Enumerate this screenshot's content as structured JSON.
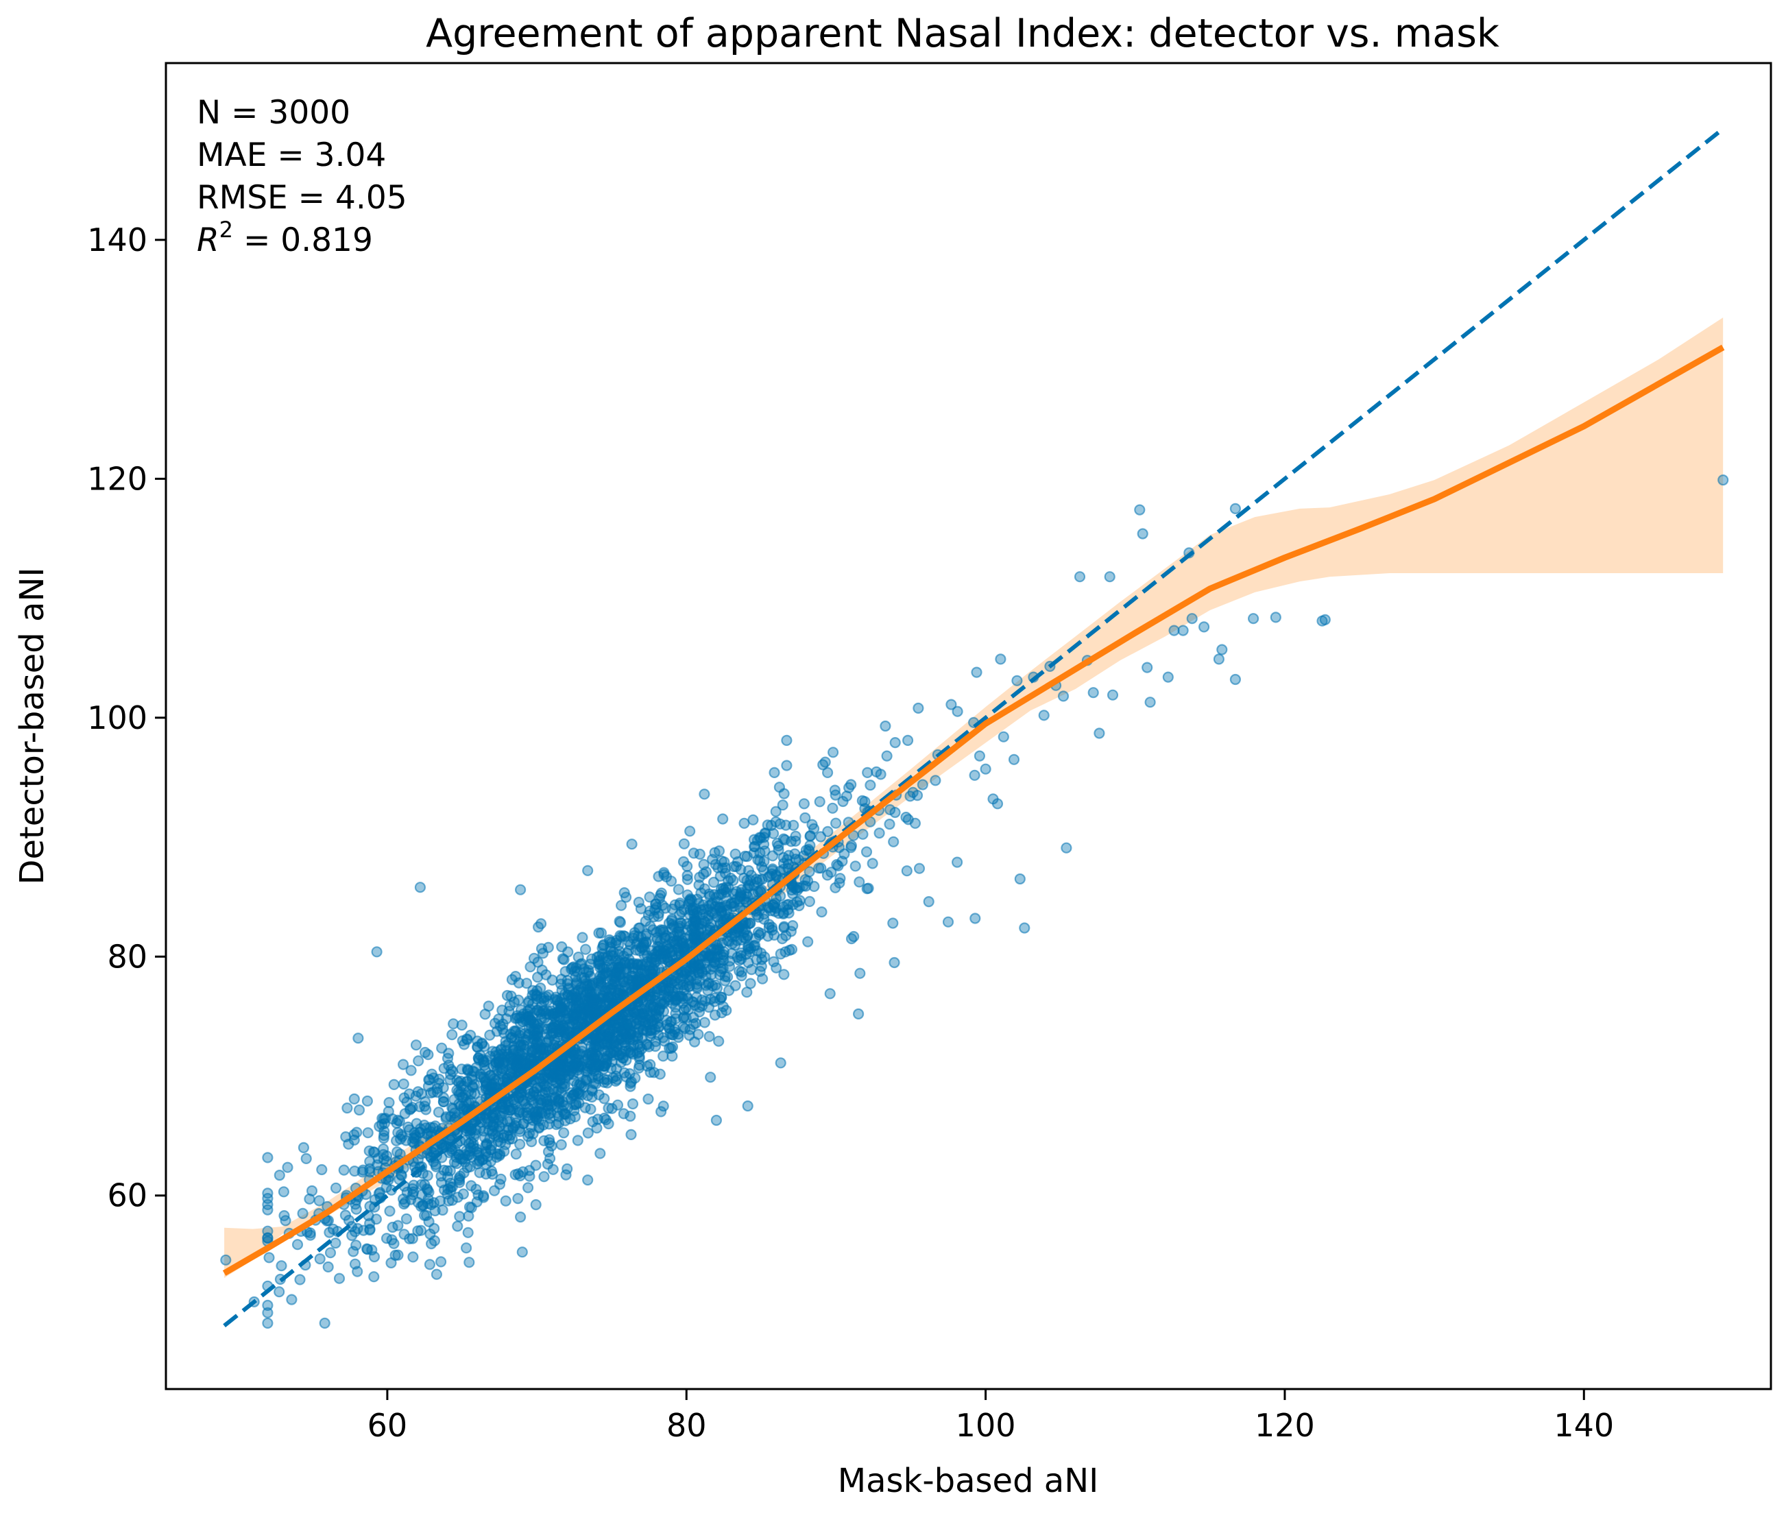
{
  "chart_data": {
    "type": "scatter",
    "title": "Agreement of apparent Nasal Index: detector vs. mask",
    "xlabel": "Mask-based aNI",
    "ylabel": "Detector-based aNI",
    "xlim": [
      45.2,
      152.5
    ],
    "ylim": [
      43.8,
      154.8
    ],
    "xticks": [
      60,
      80,
      100,
      120,
      140
    ],
    "yticks": [
      60,
      80,
      100,
      120,
      140
    ],
    "grid": false,
    "annotations": {
      "n": "N = 3000",
      "mae": "MAE = 3.04",
      "rmse": "RMSE = 4.05",
      "r2_label": "R",
      "r2_exp": "2",
      "r2_value": " = 0.819"
    },
    "identity_line": {
      "x": [
        49.1,
        149.3
      ],
      "y": [
        49.1,
        149.3
      ],
      "color": "#0173b2",
      "style": "dashed"
    },
    "trend_line": {
      "color": "#ff7f0e",
      "x": [
        49.1,
        52,
        56,
        60,
        65,
        70,
        75,
        80,
        85,
        90,
        95,
        100,
        105,
        110,
        115,
        120,
        125,
        130,
        140,
        149.3
      ],
      "y": [
        53.5,
        55.6,
        58.6,
        62.0,
        66.2,
        70.6,
        75.3,
        79.8,
        84.7,
        89.7,
        94.6,
        99.5,
        103.3,
        107.1,
        110.8,
        113.4,
        115.8,
        118.3,
        124.4,
        131.0
      ]
    },
    "confidence_band": {
      "color": "#ffe0c2",
      "x": [
        49.1,
        51,
        53,
        56,
        60,
        65,
        70,
        75,
        80,
        85,
        90,
        95,
        100,
        103,
        106,
        109,
        112,
        115,
        118,
        121,
        123,
        127,
        130,
        135,
        140,
        145,
        149.3
      ],
      "upper": [
        57.3,
        57.2,
        57.4,
        59.5,
        62.9,
        67.0,
        71.4,
        76.1,
        80.6,
        85.6,
        90.6,
        95.7,
        100.9,
        103.9,
        106.8,
        109.7,
        112.5,
        115.3,
        116.8,
        117.5,
        117.6,
        118.7,
        119.9,
        122.8,
        126.4,
        130.0,
        133.5
      ],
      "lower": [
        53.1,
        54.6,
        56.8,
        58.3,
        61.2,
        65.4,
        69.8,
        74.5,
        79.0,
        83.8,
        88.7,
        93.4,
        97.9,
        100.6,
        102.4,
        104.8,
        106.8,
        109.0,
        110.5,
        111.4,
        111.8,
        112.1,
        112.1,
        112.1,
        112.1,
        112.1,
        112.1
      ]
    },
    "series": [
      {
        "color": "#0173b2",
        "count": 3000,
        "bulk_model": {
          "trend": "trend_line",
          "x_mean": 73.5,
          "x_sd": 7.8,
          "x_min": 52,
          "x_max": 100,
          "resid_sd": 3.6
        },
        "outliers": [
          {
            "x": 49.2,
            "y": 54.6
          },
          {
            "x": 51.1,
            "y": 51.1
          },
          {
            "x": 52.1,
            "y": 54.8
          },
          {
            "x": 52.8,
            "y": 61.7
          },
          {
            "x": 53.2,
            "y": 57.9
          },
          {
            "x": 54.0,
            "y": 55.9
          },
          {
            "x": 55.5,
            "y": 54.7
          },
          {
            "x": 59.1,
            "y": 53.2
          },
          {
            "x": 59.3,
            "y": 80.4
          },
          {
            "x": 62.2,
            "y": 85.8
          },
          {
            "x": 63.3,
            "y": 53.4
          },
          {
            "x": 65.4,
            "y": 56.9
          },
          {
            "x": 66.6,
            "y": 61.8
          },
          {
            "x": 68.9,
            "y": 85.6
          },
          {
            "x": 68.9,
            "y": 58.2
          },
          {
            "x": 73.4,
            "y": 87.2
          },
          {
            "x": 73.4,
            "y": 61.3
          },
          {
            "x": 76.3,
            "y": 65.1
          },
          {
            "x": 77.9,
            "y": 73.9
          },
          {
            "x": 81.2,
            "y": 93.6
          },
          {
            "x": 81.6,
            "y": 69.9
          },
          {
            "x": 82.0,
            "y": 66.3
          },
          {
            "x": 84.1,
            "y": 67.5
          },
          {
            "x": 86.3,
            "y": 71.1
          },
          {
            "x": 86.7,
            "y": 96.0
          },
          {
            "x": 86.7,
            "y": 98.1
          },
          {
            "x": 89.8,
            "y": 97.1
          },
          {
            "x": 89.6,
            "y": 76.9
          },
          {
            "x": 91.5,
            "y": 75.2
          },
          {
            "x": 91.0,
            "y": 94.4
          },
          {
            "x": 91.6,
            "y": 78.6
          },
          {
            "x": 93.4,
            "y": 96.8
          },
          {
            "x": 93.8,
            "y": 82.8
          },
          {
            "x": 93.9,
            "y": 79.5
          },
          {
            "x": 93.3,
            "y": 99.3
          },
          {
            "x": 94.8,
            "y": 98.1
          },
          {
            "x": 95.5,
            "y": 100.8
          },
          {
            "x": 96.8,
            "y": 96.9
          },
          {
            "x": 97.5,
            "y": 82.9
          },
          {
            "x": 98.1,
            "y": 87.9
          },
          {
            "x": 96.2,
            "y": 84.6
          },
          {
            "x": 97.7,
            "y": 101.1
          },
          {
            "x": 99.2,
            "y": 99.6
          },
          {
            "x": 99.4,
            "y": 103.8
          },
          {
            "x": 99.6,
            "y": 96.8
          },
          {
            "x": 99.3,
            "y": 83.2
          },
          {
            "x": 100.0,
            "y": 95.7
          },
          {
            "x": 100.5,
            "y": 93.2
          },
          {
            "x": 100.8,
            "y": 92.8
          },
          {
            "x": 101.0,
            "y": 104.9
          },
          {
            "x": 101.2,
            "y": 98.4
          },
          {
            "x": 101.9,
            "y": 96.5
          },
          {
            "x": 102.1,
            "y": 103.1
          },
          {
            "x": 102.3,
            "y": 86.5
          },
          {
            "x": 102.6,
            "y": 82.4
          },
          {
            "x": 103.2,
            "y": 103.4
          },
          {
            "x": 103.9,
            "y": 100.2
          },
          {
            "x": 104.3,
            "y": 104.3
          },
          {
            "x": 104.7,
            "y": 102.7
          },
          {
            "x": 105.4,
            "y": 89.1
          },
          {
            "x": 105.2,
            "y": 101.8
          },
          {
            "x": 106.3,
            "y": 111.8
          },
          {
            "x": 106.8,
            "y": 104.8
          },
          {
            "x": 107.2,
            "y": 102.1
          },
          {
            "x": 107.6,
            "y": 98.7
          },
          {
            "x": 108.3,
            "y": 111.8
          },
          {
            "x": 108.5,
            "y": 101.9
          },
          {
            "x": 110.3,
            "y": 117.4
          },
          {
            "x": 110.5,
            "y": 115.4
          },
          {
            "x": 110.8,
            "y": 104.2
          },
          {
            "x": 111.0,
            "y": 101.3
          },
          {
            "x": 112.2,
            "y": 103.4
          },
          {
            "x": 112.6,
            "y": 107.3
          },
          {
            "x": 113.2,
            "y": 107.3
          },
          {
            "x": 113.6,
            "y": 113.8
          },
          {
            "x": 113.8,
            "y": 108.3
          },
          {
            "x": 114.6,
            "y": 107.6
          },
          {
            "x": 115.6,
            "y": 104.9
          },
          {
            "x": 115.8,
            "y": 105.7
          },
          {
            "x": 116.7,
            "y": 103.2
          },
          {
            "x": 116.7,
            "y": 117.5
          },
          {
            "x": 117.9,
            "y": 108.3
          },
          {
            "x": 119.4,
            "y": 108.4
          },
          {
            "x": 122.5,
            "y": 108.1
          },
          {
            "x": 122.7,
            "y": 108.2
          },
          {
            "x": 149.3,
            "y": 119.9
          }
        ]
      }
    ]
  }
}
